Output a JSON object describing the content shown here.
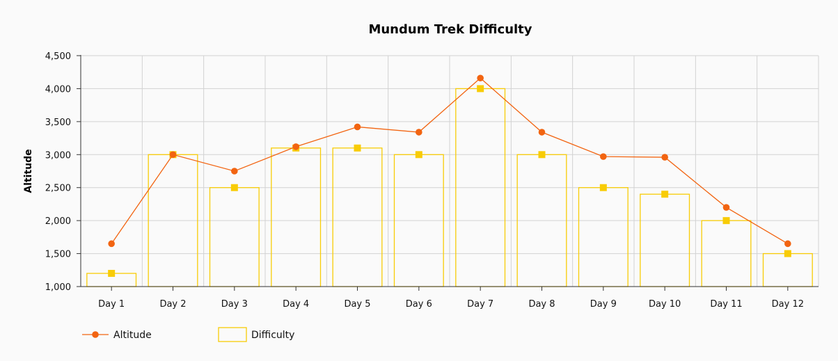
{
  "chart_data": {
    "type": "bar",
    "title": "Mundum Trek Difficulty",
    "xlabel": "",
    "ylabel": "Altitude",
    "ylim": [
      1000,
      4500
    ],
    "yticks": [
      "1,000",
      "1,500",
      "2,000",
      "2,500",
      "3,000",
      "3,500",
      "4,000",
      "4,500"
    ],
    "grid": true,
    "legend_position": "bottom-left",
    "categories": [
      "Day 1",
      "Day 2",
      "Day 3",
      "Day 4",
      "Day 5",
      "Day 6",
      "Day 7",
      "Day 8",
      "Day 9",
      "Day 10",
      "Day 11",
      "Day 12"
    ],
    "series": [
      {
        "name": "Altitude",
        "type": "line",
        "color": "#f26411",
        "values": [
          1650,
          3000,
          2750,
          3120,
          3420,
          3340,
          4160,
          3340,
          2970,
          2960,
          2200,
          1650
        ]
      },
      {
        "name": "Difficulty",
        "type": "bar",
        "color": "#f8cc06",
        "values": [
          1200,
          3000,
          2500,
          3100,
          3100,
          3000,
          4000,
          3000,
          2500,
          2400,
          2000,
          1500
        ]
      }
    ]
  }
}
